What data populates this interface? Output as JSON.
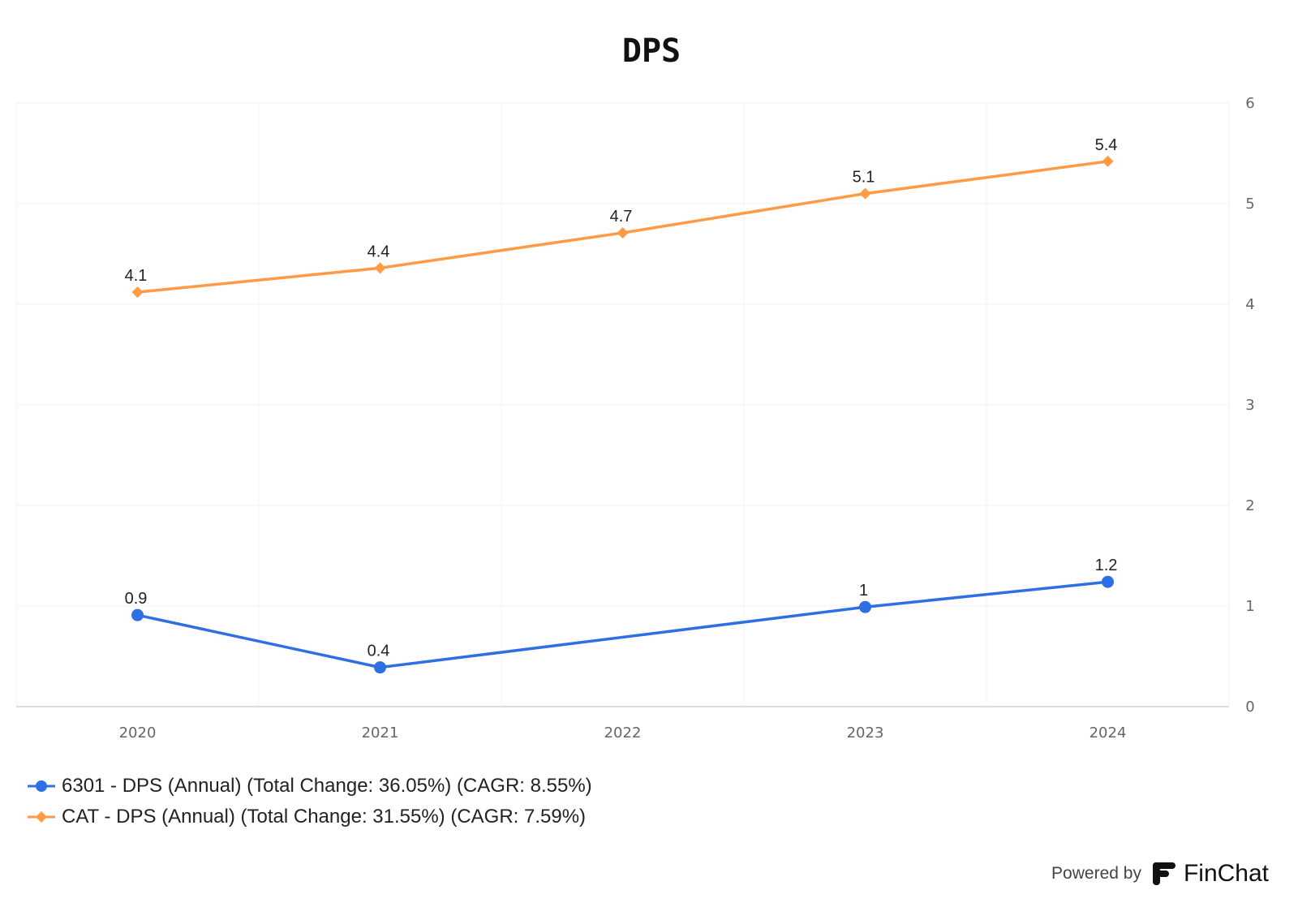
{
  "chart_data": {
    "type": "line",
    "title": "DPS",
    "x": [
      "2020",
      "2021",
      "2022",
      "2023",
      "2024"
    ],
    "ylim": [
      0,
      6
    ],
    "yticks": [
      "0",
      "1",
      "2",
      "3",
      "4",
      "5",
      "6"
    ],
    "y_axis_position": "right",
    "grid": true,
    "legend_position": "bottom-left",
    "series": [
      {
        "name": "6301 - DPS (Annual) (Total Change: 36.05%) (CAGR: 8.55%)",
        "color": "#2f6fe4",
        "marker": "circle",
        "values": [
          0.91,
          0.39,
          null,
          0.99,
          1.24
        ],
        "labels": [
          "0.9",
          "0.4",
          "",
          "1",
          "1.2"
        ]
      },
      {
        "name": "CAT - DPS (Annual) (Total Change: 31.55%) (CAGR: 7.59%)",
        "color": "#ff9a45",
        "marker": "diamond",
        "values": [
          4.12,
          4.36,
          4.71,
          5.1,
          5.42
        ],
        "labels": [
          "4.1",
          "4.4",
          "4.7",
          "5.1",
          "5.4"
        ]
      }
    ]
  },
  "footer": {
    "powered_by": "Powered by",
    "brand": "FinChat",
    "brand_color": "#111111"
  }
}
